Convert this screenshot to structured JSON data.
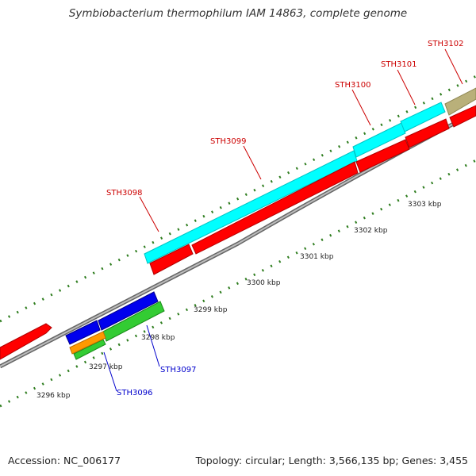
{
  "title": "Symbiobacterium thermophilum IAM 14863, complete genome",
  "footer": {
    "accession": "Accession: NC_006177",
    "summary": "Topology: circular; Length: 3,566,135 bp; Genes: 3,455"
  },
  "colors": {
    "backbone": "#8c8c8c",
    "tick": "#2e7d1e",
    "forward_label": "#cc0000",
    "reverse_label": "#0000cc"
  },
  "ticks": [
    "3296 kbp",
    "3297 kbp",
    "3298 kbp",
    "3299 kbp",
    "3300 kbp",
    "3301 kbp",
    "3302 kbp",
    "3303 kbp"
  ],
  "gene_labels": [
    {
      "name": "STH3098",
      "color": "#cc0000"
    },
    {
      "name": "STH3099",
      "color": "#cc0000"
    },
    {
      "name": "STH3100",
      "color": "#cc0000"
    },
    {
      "name": "STH3101",
      "color": "#cc0000"
    },
    {
      "name": "STH3102",
      "color": "#cc0000"
    },
    {
      "name": "STH3097",
      "color": "#0000cc"
    },
    {
      "name": "STH3096",
      "color": "#0000cc"
    }
  ]
}
